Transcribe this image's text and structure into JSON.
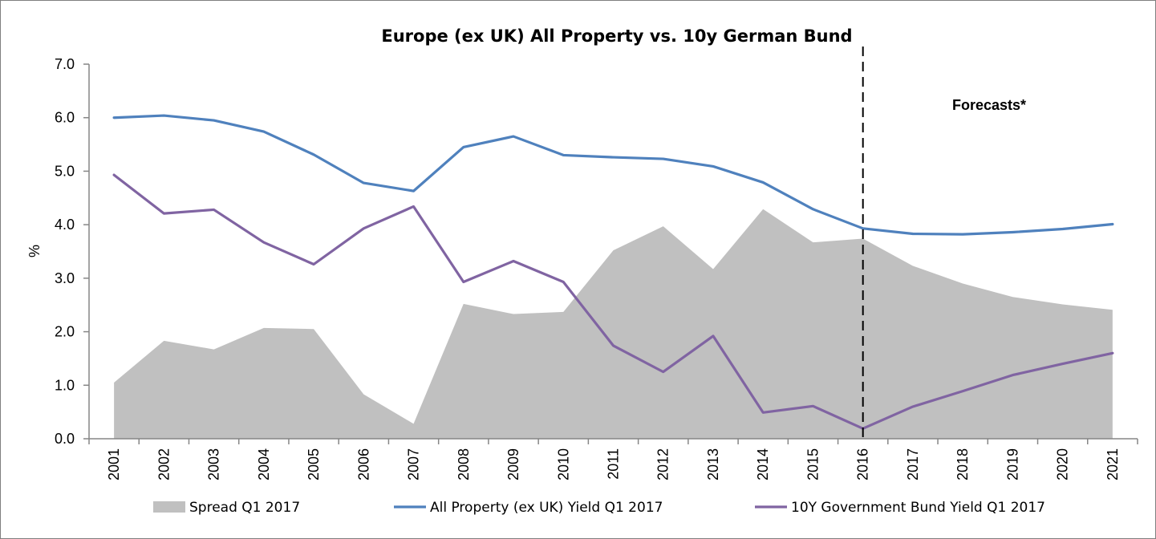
{
  "chart_data": {
    "type": "line",
    "title": "Europe (ex UK) All Property vs. 10y German Bund",
    "ylabel": "%",
    "xlabel": "",
    "ylim": [
      0,
      7
    ],
    "y_ticks": [
      "0.0",
      "1.0",
      "2.0",
      "3.0",
      "4.0",
      "5.0",
      "6.0",
      "7.0"
    ],
    "categories": [
      "2001",
      "2002",
      "2003",
      "2004",
      "2005",
      "2006",
      "2007",
      "2008",
      "2009",
      "2010",
      "2011",
      "2012",
      "2013",
      "2014",
      "2015",
      "2016",
      "2017",
      "2018",
      "2019",
      "2020",
      "2021"
    ],
    "series": [
      {
        "name": "Spread Q1 2017",
        "kind": "area",
        "color": "#c0c0c0",
        "values": [
          1.05,
          1.83,
          1.67,
          2.07,
          2.05,
          0.83,
          0.28,
          2.52,
          2.33,
          2.37,
          3.52,
          3.97,
          3.17,
          4.29,
          3.67,
          3.74,
          3.23,
          2.9,
          2.65,
          2.51,
          2.41
        ]
      },
      {
        "name": "All Property (ex UK) Yield Q1 2017",
        "kind": "line",
        "color": "#4f81bd",
        "values": [
          6.0,
          6.04,
          5.95,
          5.74,
          5.31,
          4.78,
          4.63,
          5.45,
          5.65,
          5.3,
          5.26,
          5.23,
          5.09,
          4.79,
          4.29,
          3.93,
          3.83,
          3.82,
          3.86,
          3.92,
          4.01
        ]
      },
      {
        "name": "10Y Government Bund Yield Q1 2017",
        "kind": "line",
        "color": "#8064a2",
        "values": [
          4.93,
          4.21,
          4.28,
          3.67,
          3.26,
          3.93,
          4.34,
          2.93,
          3.32,
          2.93,
          1.74,
          1.25,
          1.92,
          0.49,
          0.61,
          0.19,
          0.6,
          0.89,
          1.19,
          1.4,
          1.6
        ]
      }
    ],
    "annotations": [
      {
        "type": "vertical-dashed-line",
        "at_category": "2016"
      },
      {
        "type": "text",
        "text": "Forecasts*"
      }
    ],
    "legend_position": "bottom",
    "grid": false
  }
}
